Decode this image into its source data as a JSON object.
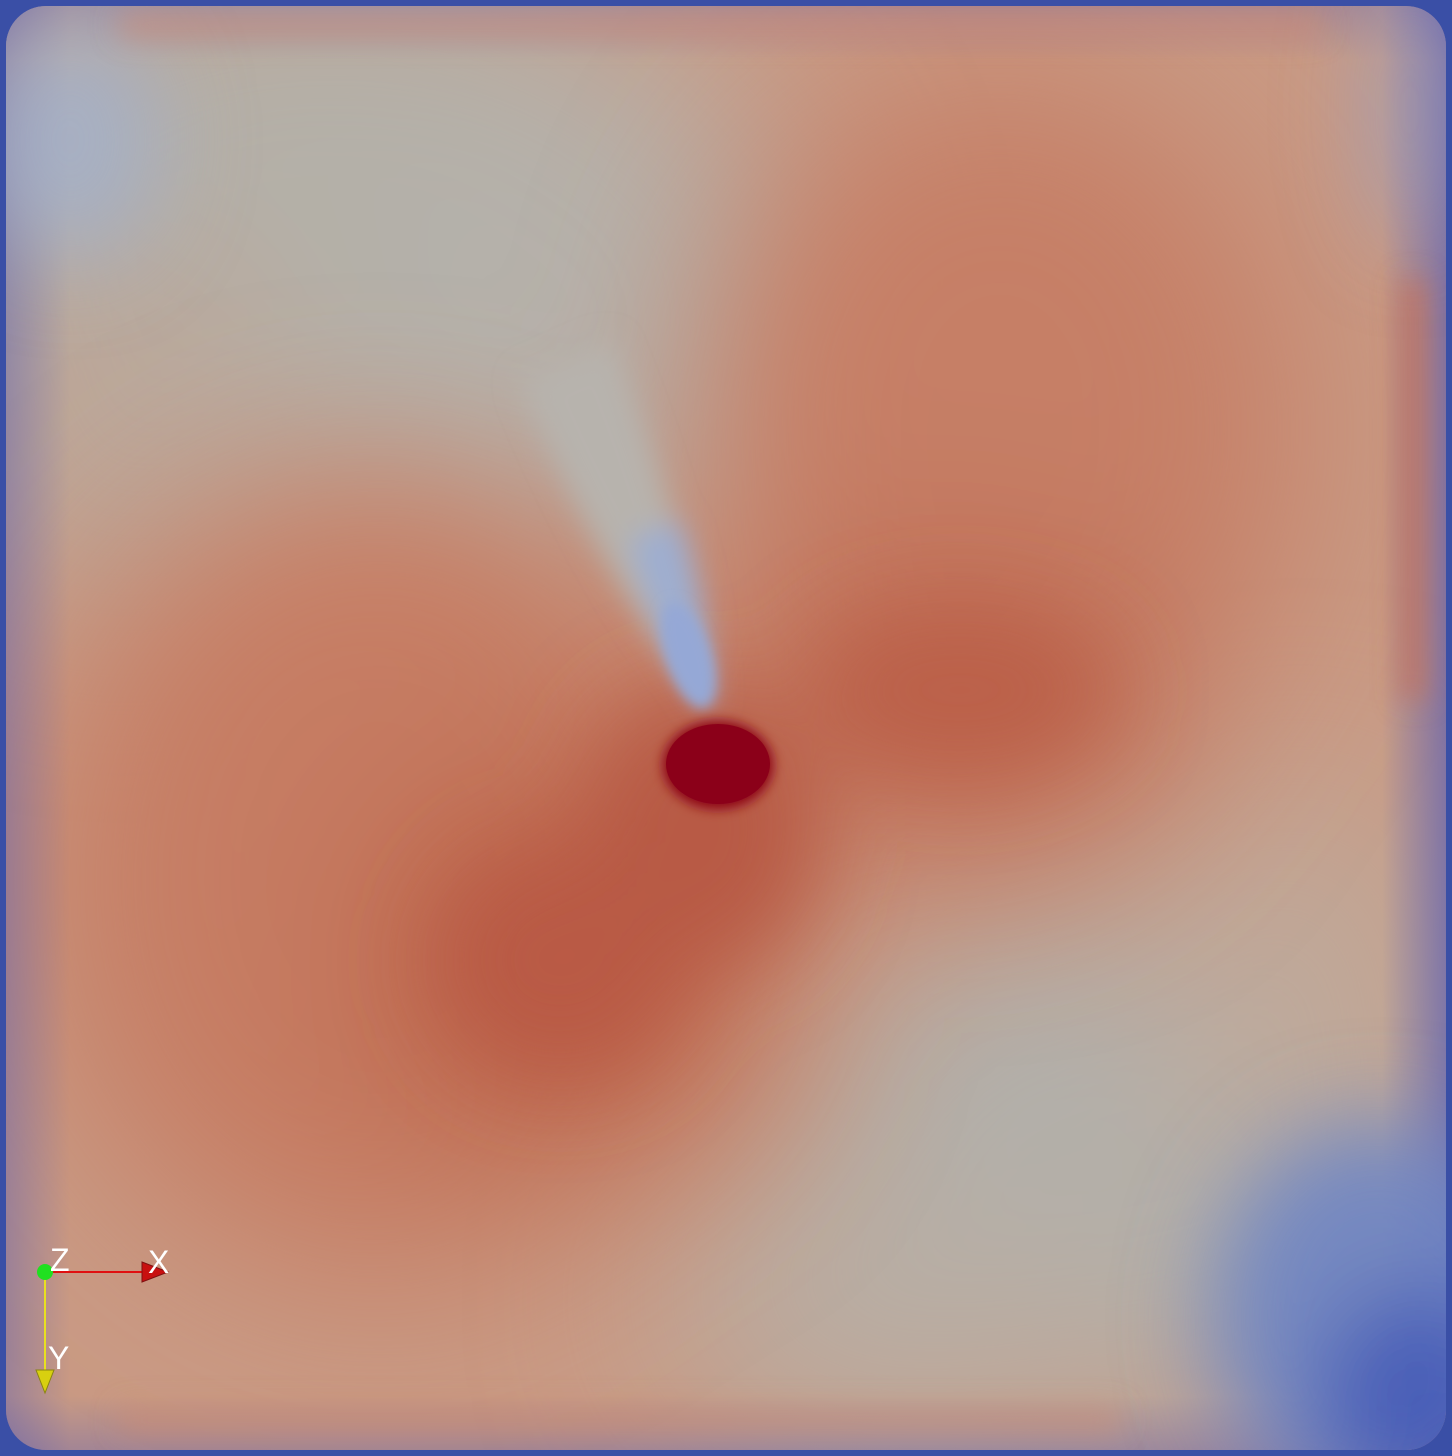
{
  "render_view": {
    "colormap": {
      "low_color": "#3b4cc0",
      "mid_color": "#b5b0a6",
      "high_color": "#b40426",
      "peak_color": "#8b0019"
    }
  },
  "orientation_axes": {
    "x_label": "X",
    "y_label": "Y",
    "z_label": "Z",
    "x_color": "#e01010",
    "y_color": "#e8e020",
    "z_color": "#20e020"
  }
}
